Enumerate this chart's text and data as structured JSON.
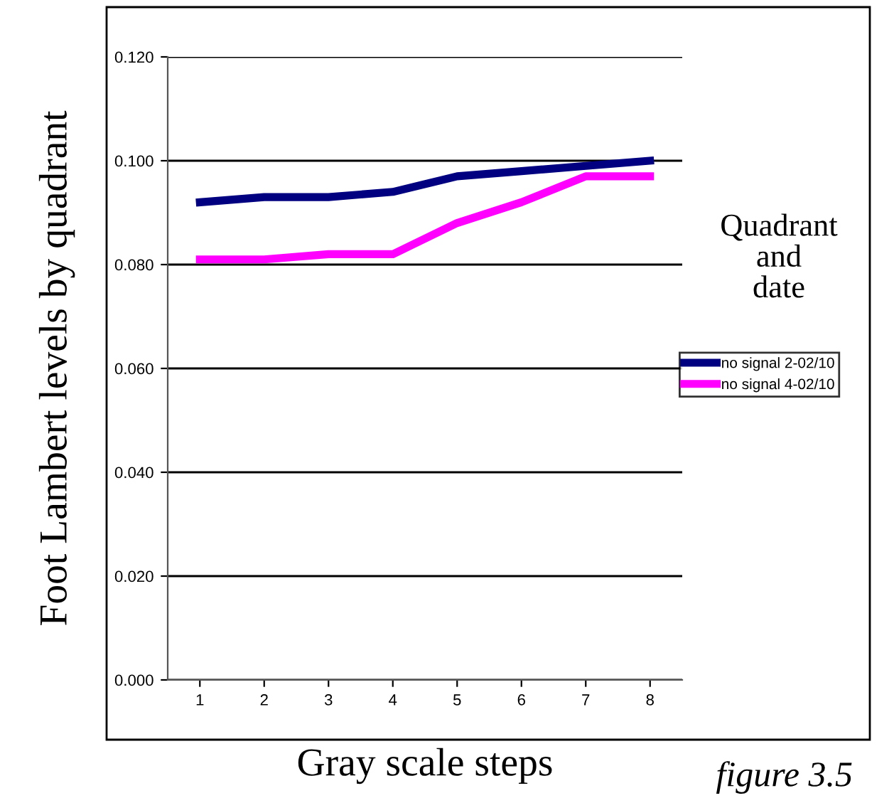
{
  "chart_data": {
    "type": "line",
    "xlabel": "Gray scale steps",
    "ylabel": "Foot Lambert levels by quadrant",
    "legend_title": "Quadrant\nand\ndate",
    "legend": "right",
    "categories": [
      "1",
      "2",
      "3",
      "4",
      "5",
      "6",
      "7",
      "8"
    ],
    "series": [
      {
        "name": "no signal 2-02/10",
        "color": "#000080",
        "values": [
          0.092,
          0.093,
          0.093,
          0.094,
          0.097,
          0.098,
          0.099,
          0.1
        ]
      },
      {
        "name": "no signal 4-02/10",
        "color": "#ff00ff",
        "values": [
          0.081,
          0.081,
          0.082,
          0.082,
          0.088,
          0.092,
          0.097,
          0.097
        ]
      }
    ],
    "ylim": [
      0,
      0.12
    ],
    "yticks": [
      {
        "value": 0,
        "label": "0.000"
      },
      {
        "value": 0.02,
        "label": "0.020"
      },
      {
        "value": 0.04,
        "label": "0.040"
      },
      {
        "value": 0.06,
        "label": "0.060"
      },
      {
        "value": 0.08,
        "label": "0.080"
      },
      {
        "value": 0.1,
        "label": "0.100"
      },
      {
        "value": 0.12,
        "label": "0.120"
      }
    ],
    "grid": "y",
    "marker": "none",
    "line_style": "solid",
    "annotations": [
      "figure 3.5"
    ]
  }
}
